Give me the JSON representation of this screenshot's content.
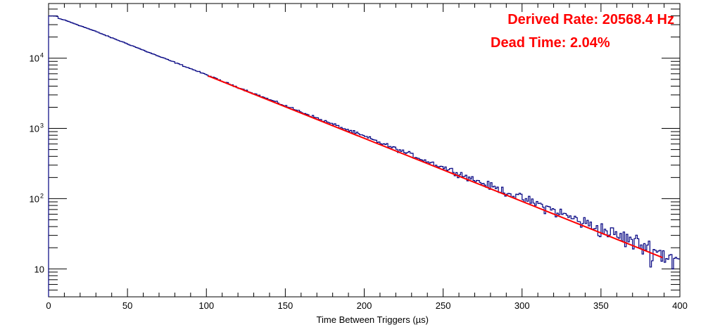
{
  "chart_data": {
    "type": "line",
    "title": "",
    "xlabel": "Time Between Triggers (µs)",
    "ylabel": "",
    "xlim": [
      0,
      400
    ],
    "ylim": [
      4,
      60000
    ],
    "y_scale": "log",
    "grid": false,
    "legend": "none",
    "x_ticks": [
      0,
      50,
      100,
      150,
      200,
      250,
      300,
      350,
      400
    ],
    "x_tick_labels": [
      "0",
      "50",
      "100",
      "150",
      "200",
      "250",
      "300",
      "350",
      "400"
    ],
    "y_ticks": [
      {
        "value": 10,
        "label": "10",
        "exp": ""
      },
      {
        "value": 100,
        "label": "10",
        "exp": "2"
      },
      {
        "value": 1000,
        "label": "10",
        "exp": "3"
      },
      {
        "value": 10000,
        "label": "10",
        "exp": "4"
      }
    ],
    "annotations": [
      {
        "text": "Derived Rate: 20568.4 Hz",
        "color": "#ff0000"
      },
      {
        "text": "Dead Time: 2.04%",
        "color": "#ff0000"
      }
    ],
    "series": [
      {
        "kind": "histogram",
        "color": "#000080",
        "x": [
          0,
          10,
          20,
          30,
          40,
          50,
          60,
          70,
          80,
          90,
          100,
          110,
          120,
          130,
          140,
          150,
          160,
          170,
          180,
          190,
          200,
          210,
          220,
          230,
          240,
          250,
          260,
          270,
          280,
          290,
          300,
          310,
          320,
          330,
          340,
          350,
          360,
          370,
          380,
          390,
          400
        ],
        "y": [
          40000,
          35000,
          29000,
          24000,
          19500,
          16000,
          13000,
          10600,
          8700,
          7100,
          5800,
          4700,
          3850,
          3150,
          2570,
          2100,
          1720,
          1400,
          1150,
          940,
          770,
          630,
          510,
          420,
          340,
          280,
          230,
          185,
          150,
          125,
          100,
          84,
          68,
          55,
          45,
          37,
          30,
          25,
          20,
          16,
          13
        ]
      },
      {
        "kind": "fit",
        "color": "#ff0000",
        "x_range": [
          101,
          389
        ],
        "y_start": 5600,
        "y_end": 14.5
      }
    ]
  }
}
